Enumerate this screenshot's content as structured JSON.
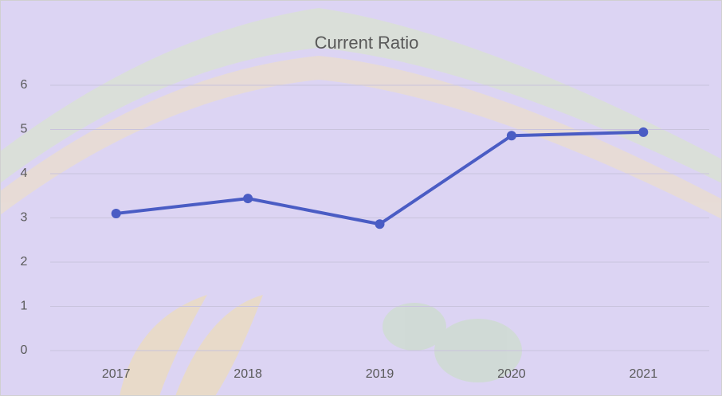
{
  "chart_data": {
    "type": "line",
    "title": "Current Ratio",
    "categories": [
      "2017",
      "2018",
      "2019",
      "2020",
      "2021"
    ],
    "series": [
      {
        "name": "Current Ratio",
        "color": "#4a5cc4",
        "values": [
          3.1,
          3.44,
          2.86,
          4.86,
          4.94
        ]
      }
    ],
    "ylim": [
      0,
      6
    ],
    "yticks": [
      0,
      1,
      2,
      3,
      4,
      5,
      6
    ],
    "grid": true
  }
}
